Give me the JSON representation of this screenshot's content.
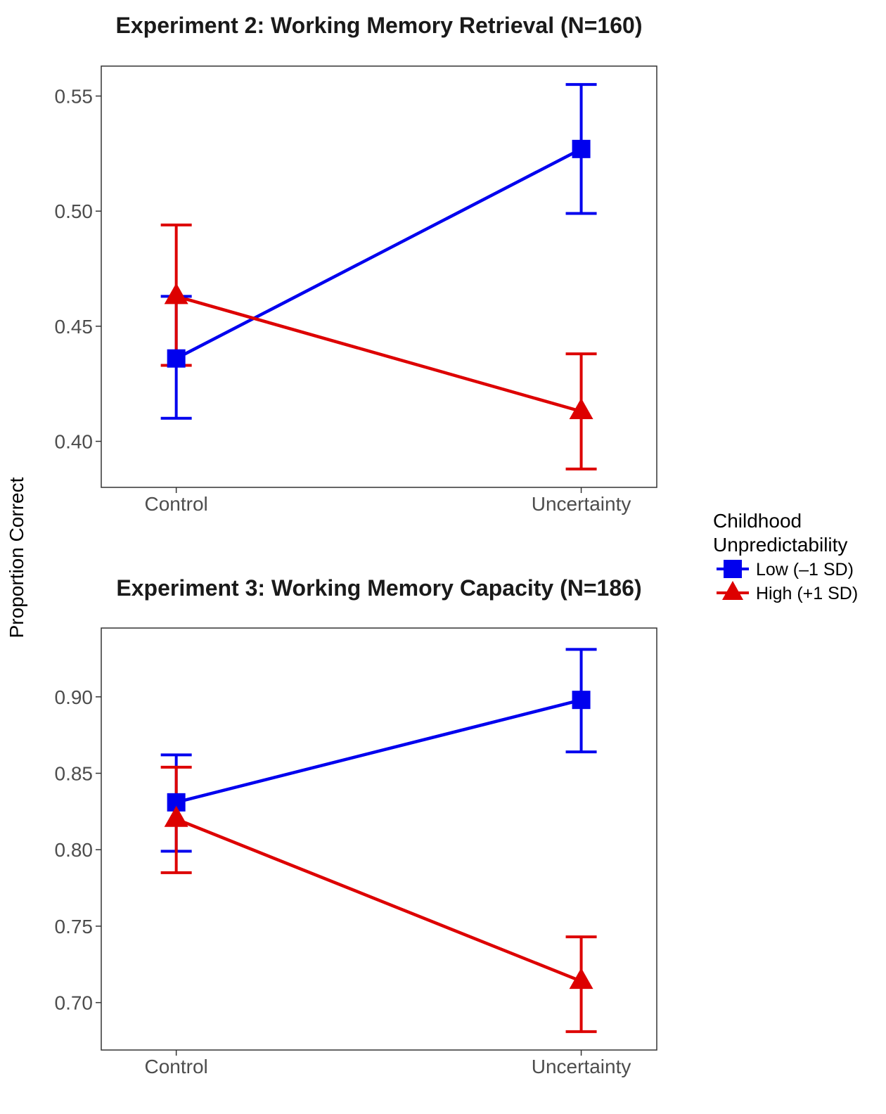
{
  "figure": {
    "ylabel": "Proportion Correct"
  },
  "legend": {
    "title_lines": [
      "Childhood",
      "Unpredictability"
    ],
    "placement": "right",
    "entries": [
      {
        "label": "Low (–1 SD)",
        "color": "#0000ee",
        "shape": "square"
      },
      {
        "label": "High (+1 SD)",
        "color": "#dd0000",
        "shape": "triangle"
      }
    ]
  },
  "chart_data": [
    {
      "type": "line",
      "title": "Experiment 2: Working Memory Retrieval (N=160)",
      "categories": [
        "Control",
        "Uncertainty"
      ],
      "xlabel": "",
      "ylim": [
        0.38,
        0.563
      ],
      "yticks": [
        0.4,
        0.45,
        0.5,
        0.55
      ],
      "ytick_labels": [
        "0.40",
        "0.45",
        "0.50",
        "0.55"
      ],
      "grid": false,
      "series": [
        {
          "name": "Low (–1 SD)",
          "color": "#0000ee",
          "shape": "square",
          "values": [
            0.436,
            0.527
          ],
          "lower": [
            0.41,
            0.499
          ],
          "upper": [
            0.463,
            0.555
          ]
        },
        {
          "name": "High (+1 SD)",
          "color": "#dd0000",
          "shape": "triangle",
          "values": [
            0.463,
            0.413
          ],
          "lower": [
            0.433,
            0.388
          ],
          "upper": [
            0.494,
            0.438
          ]
        }
      ]
    },
    {
      "type": "line",
      "title": "Experiment 3: Working Memory Capacity (N=186)",
      "categories": [
        "Control",
        "Uncertainty"
      ],
      "xlabel": "",
      "ylim": [
        0.669,
        0.945
      ],
      "yticks": [
        0.7,
        0.75,
        0.8,
        0.85,
        0.9
      ],
      "ytick_labels": [
        "0.70",
        "0.75",
        "0.80",
        "0.85",
        "0.90"
      ],
      "grid": false,
      "series": [
        {
          "name": "Low (–1 SD)",
          "color": "#0000ee",
          "shape": "square",
          "values": [
            0.831,
            0.898
          ],
          "lower": [
            0.799,
            0.864
          ],
          "upper": [
            0.862,
            0.931
          ]
        },
        {
          "name": "High (+1 SD)",
          "color": "#dd0000",
          "shape": "triangle",
          "values": [
            0.82,
            0.714
          ],
          "lower": [
            0.785,
            0.681
          ],
          "upper": [
            0.854,
            0.743
          ]
        }
      ]
    }
  ]
}
